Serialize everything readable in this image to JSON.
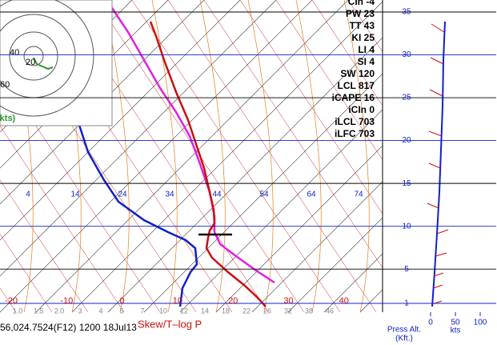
{
  "header": {
    "caption": "56,024.7524(F12) 1200 18Jul13",
    "diagram_label": "Skew/T–log P",
    "axis_label": "Press Alt.",
    "axis_unit": "(Kft.)",
    "wind_unit": "kts"
  },
  "indices": [
    "CIn -4",
    "PW 23",
    "TT 43",
    "KI 25",
    "LI 4",
    "SI 4",
    "SW 120",
    "LCL 817",
    "iCAPE 16",
    "iCIn 0",
    "iLCL 703",
    "iLFC 703"
  ],
  "altitude_ticks": [
    1,
    5,
    10,
    15,
    20,
    25,
    30,
    35
  ],
  "altitude_lim": [
    0,
    36
  ],
  "temperature_labels": [
    "-20",
    "-10",
    "0",
    "10",
    "20",
    "30",
    "40"
  ],
  "theta_labels": [
    "4",
    "14",
    "24",
    "34",
    "44",
    "54",
    "64",
    "74"
  ],
  "mixing_labels": [
    "1.0",
    "1.5",
    "2.0",
    "3",
    "4",
    "5",
    "7",
    "10",
    "12",
    "14",
    "18",
    "22",
    "26",
    "32",
    "38",
    "46"
  ],
  "wind_ticks": [
    0,
    50,
    100
  ],
  "wind_lim": [
    0,
    100
  ],
  "hodograph": {
    "rings": [
      "20",
      "40",
      "60"
    ],
    "unit": "(kts)"
  }
}
